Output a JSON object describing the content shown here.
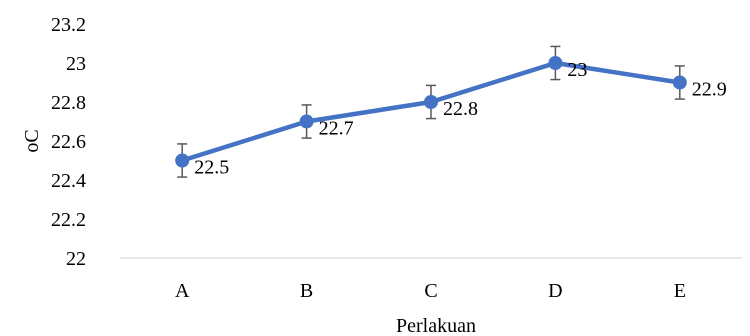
{
  "chart_data": {
    "type": "line",
    "categories": [
      "A",
      "B",
      "C",
      "D",
      "E"
    ],
    "series": [
      {
        "values": [
          22.5,
          22.7,
          22.8,
          23,
          22.9
        ],
        "data_labels": [
          "22.5",
          "22.7",
          "22.8",
          "23",
          "22.9"
        ],
        "error": 0.085,
        "color": "#4472C4"
      }
    ],
    "xlabel": "Perlakuan",
    "ylabel": "oC",
    "ylim": [
      22,
      23.2
    ],
    "yticks": [
      "22",
      "22.2",
      "22.4",
      "22.6",
      "22.8",
      "23",
      "23.2"
    ],
    "grid": false,
    "axis_color": "#D9D9D9",
    "errorbar_color": "#595959"
  }
}
